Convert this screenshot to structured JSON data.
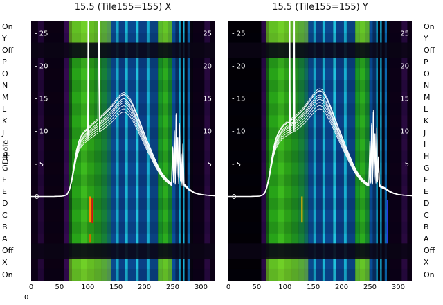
{
  "figure": {
    "title_x": "15.5 (Tile155=155) X",
    "title_y": "15.5 (Tile155=155) Y",
    "dipole_axis_label": "Dipole",
    "corner_zero": "0"
  },
  "row_labels": [
    "On",
    "Y",
    "Off",
    "P",
    "O",
    "N",
    "M",
    "L",
    "K",
    "J",
    "I",
    "H",
    "G",
    "F",
    "E",
    "D",
    "C",
    "B",
    "A",
    "Off",
    "X",
    "On"
  ],
  "ytick_rows": [
    {
      "v": 25,
      "left": "- 25",
      "right": "25"
    },
    {
      "v": 20,
      "left": "- 20",
      "right": "20"
    },
    {
      "v": 15,
      "left": "- 15",
      "right": "15"
    },
    {
      "v": 10,
      "left": "- 10",
      "right": "10"
    },
    {
      "v": 5,
      "left": "- 5",
      "right": "5"
    },
    {
      "v": 0,
      "left": "0",
      "right": ""
    }
  ],
  "xtick_labels": [
    "0",
    "50",
    "100",
    "150",
    "200",
    "250",
    "300"
  ],
  "xtick_values": [
    0,
    50,
    100,
    150,
    200,
    250,
    300
  ],
  "chart_data": [
    {
      "type": "heatmap+line",
      "title": "15.5 (Tile155=155) X",
      "xlabel": "",
      "ylabel": "Dipole",
      "xlim": [
        0,
        324
      ],
      "ylim": [
        -12.9,
        26.9
      ],
      "yticks": [
        0,
        5,
        10,
        15,
        20,
        25
      ],
      "n_rows": 22,
      "line_color": "#ffffff",
      "off_color": "#0a0414",
      "bright_color": "rgba(225,255,60,0.32)",
      "off_row_indices": [
        2,
        19
      ],
      "bright_row_indices": [
        0,
        1,
        20,
        21
      ],
      "bright_spans": [
        [
          66,
          141
        ],
        [
          224,
          249
        ]
      ],
      "stripes": [
        [
          0,
          12,
          "#0d0016"
        ],
        [
          12,
          22,
          "#230737"
        ],
        [
          22,
          58,
          "#0b0012"
        ],
        [
          58,
          66,
          "#33094e"
        ],
        [
          66,
          72,
          "#135a12"
        ],
        [
          72,
          88,
          "#27a318"
        ],
        [
          88,
          100,
          "#3cba1e"
        ],
        [
          100,
          112,
          "#2aa018"
        ],
        [
          112,
          124,
          "#1e8e20"
        ],
        [
          124,
          134,
          "#178038"
        ],
        [
          134,
          141,
          "#0f6a5e"
        ],
        [
          141,
          150,
          "#0a4a8e"
        ],
        [
          150,
          155,
          "#17a8ca"
        ],
        [
          155,
          166,
          "#0a3f86"
        ],
        [
          166,
          171,
          "#1bb6d6"
        ],
        [
          171,
          185,
          "#0a4890"
        ],
        [
          185,
          190,
          "#21c2de"
        ],
        [
          190,
          204,
          "#0a3f86"
        ],
        [
          204,
          209,
          "#17aed2"
        ],
        [
          209,
          224,
          "#0a4280"
        ],
        [
          224,
          232,
          "#199826"
        ],
        [
          232,
          242,
          "#2bac1e"
        ],
        [
          242,
          249,
          "#16842a"
        ],
        [
          249,
          255,
          "#0a4e98"
        ],
        [
          255,
          261,
          "#083064"
        ],
        [
          261,
          264,
          "#0fa6ce"
        ],
        [
          264,
          268,
          "#060512"
        ],
        [
          268,
          271,
          "#1ab2da"
        ],
        [
          271,
          276,
          "#060616"
        ],
        [
          276,
          280,
          "#0a68ae"
        ],
        [
          280,
          286,
          "#070410"
        ],
        [
          286,
          306,
          "#0c0016"
        ],
        [
          306,
          316,
          "#28093e"
        ],
        [
          316,
          324,
          "#0c0014"
        ]
      ],
      "spectrum": {
        "x": [
          0,
          40,
          55,
          60,
          64,
          68,
          72,
          76,
          80,
          84,
          88,
          92,
          96,
          100,
          100.8,
          101.6,
          106,
          110,
          114,
          118,
          118.6,
          119.8,
          120.6,
          126,
          132,
          138,
          144,
          150,
          156,
          160,
          164,
          168,
          172,
          176,
          180,
          184,
          188,
          192,
          196,
          200,
          205,
          210,
          215,
          220,
          225,
          230,
          235,
          240,
          245,
          248,
          250,
          251.5,
          253,
          254.5,
          256,
          257.5,
          259,
          260.5,
          262,
          263.5,
          265,
          266.5,
          268,
          270,
          274,
          278,
          283,
          288,
          295,
          305,
          315,
          324
        ],
        "y": [
          0,
          0,
          0.05,
          0.15,
          0.4,
          1.2,
          2.8,
          5,
          7,
          8.3,
          9.1,
          9.6,
          10,
          10.3,
          35,
          10.4,
          10.8,
          11.1,
          11.4,
          11.7,
          35,
          35,
          11.9,
          12.3,
          12.8,
          13.3,
          13.9,
          14.6,
          15.2,
          15.5,
          15.6,
          15.4,
          15,
          14.5,
          13.8,
          13,
          12.2,
          11.3,
          10.4,
          9.5,
          8.4,
          7.4,
          6.4,
          5.4,
          4.5,
          3.7,
          3.1,
          2.6,
          2.2,
          2,
          7.5,
          2.5,
          10,
          2.2,
          12.5,
          3.5,
          9,
          2.3,
          11,
          2.8,
          6.5,
          2,
          8,
          1.9,
          1.6,
          1.2,
          0.9,
          0.6,
          0.4,
          0.25,
          0.15,
          0.1
        ]
      },
      "trace_multipliers": [
        1,
        0.96,
        0.92,
        0.89,
        0.86,
        1.02,
        0.83,
        0.94
      ],
      "markers": [
        {
          "x": 104,
          "y1": 0,
          "y2": -3.9,
          "color": "#ff8a00"
        },
        {
          "x": 108,
          "y1": -0.3,
          "y2": -4.1,
          "color": "#e01010"
        },
        {
          "x": 104,
          "y1": -5.8,
          "y2": -7.0,
          "color": "#c96a00"
        }
      ]
    },
    {
      "type": "heatmap+line",
      "title": "15.5 (Tile155=155) Y",
      "xlabel": "",
      "ylabel": "Dipole",
      "xlim": [
        0,
        324
      ],
      "ylim": [
        -12.9,
        26.9
      ],
      "yticks": [
        0,
        5,
        10,
        15,
        20,
        25
      ],
      "n_rows": 22,
      "line_color": "#ffffff",
      "off_color": "#0a0414",
      "bright_color": "rgba(225,255,60,0.32)",
      "off_row_indices": [
        2,
        19
      ],
      "bright_row_indices": [
        0,
        1,
        20,
        21
      ],
      "bright_spans": [
        [
          66,
          141
        ],
        [
          224,
          249
        ]
      ],
      "stripes": [
        [
          0,
          58,
          "#020005"
        ],
        [
          58,
          66,
          "#2a0846"
        ],
        [
          66,
          72,
          "#135a12"
        ],
        [
          72,
          88,
          "#27a318"
        ],
        [
          88,
          100,
          "#3cba1e"
        ],
        [
          100,
          112,
          "#2aa018"
        ],
        [
          112,
          124,
          "#1e8e20"
        ],
        [
          124,
          134,
          "#178038"
        ],
        [
          134,
          141,
          "#0f6a5e"
        ],
        [
          141,
          150,
          "#0a4a8e"
        ],
        [
          150,
          155,
          "#17a8ca"
        ],
        [
          155,
          166,
          "#0a3f86"
        ],
        [
          166,
          171,
          "#1bb6d6"
        ],
        [
          171,
          185,
          "#0a4890"
        ],
        [
          185,
          190,
          "#21c2de"
        ],
        [
          190,
          204,
          "#0a3f86"
        ],
        [
          204,
          209,
          "#17aed2"
        ],
        [
          209,
          224,
          "#0a4280"
        ],
        [
          224,
          232,
          "#199826"
        ],
        [
          232,
          242,
          "#2bac1e"
        ],
        [
          242,
          249,
          "#16842a"
        ],
        [
          249,
          255,
          "#0a4e98"
        ],
        [
          255,
          261,
          "#083064"
        ],
        [
          261,
          264,
          "#0fa6ce"
        ],
        [
          264,
          268,
          "#060512"
        ],
        [
          268,
          271,
          "#1ab2da"
        ],
        [
          271,
          276,
          "#060616"
        ],
        [
          276,
          280,
          "#0a68ae"
        ],
        [
          280,
          286,
          "#070410"
        ],
        [
          286,
          306,
          "#0c0016"
        ],
        [
          306,
          316,
          "#28093e"
        ],
        [
          316,
          324,
          "#0c0014"
        ]
      ],
      "spectrum": {
        "x": [
          0,
          40,
          55,
          60,
          64,
          68,
          72,
          76,
          80,
          84,
          88,
          92,
          96,
          100,
          104,
          107.5,
          108.3,
          109.1,
          112,
          115.5,
          116.3,
          117.1,
          122,
          128,
          134,
          140,
          146,
          152,
          158,
          162,
          166,
          170,
          174,
          178,
          182,
          186,
          190,
          195,
          200,
          205,
          210,
          215,
          220,
          225,
          230,
          235,
          240,
          245,
          248,
          250,
          251.5,
          253,
          254.5,
          256,
          257.5,
          259,
          260.5,
          262,
          263.5,
          265,
          267,
          270,
          275,
          280,
          285,
          292,
          300,
          312,
          324
        ],
        "y": [
          0,
          0,
          0.05,
          0.2,
          0.5,
          1.5,
          3.2,
          5.5,
          7.5,
          8.8,
          9.6,
          10.2,
          10.7,
          11,
          11.3,
          11.4,
          35,
          11.5,
          11.8,
          11.9,
          35,
          12,
          12.4,
          12.9,
          13.5,
          14.2,
          14.9,
          15.6,
          16.1,
          16.2,
          16,
          15.5,
          14.9,
          14.1,
          13.2,
          12.3,
          11.4,
          10.3,
          9.2,
          8.1,
          7,
          6,
          5,
          4.1,
          3.4,
          2.8,
          2.4,
          2,
          1.9,
          8.5,
          2.4,
          11,
          2.2,
          13,
          3,
          9.5,
          2.4,
          10.5,
          2.6,
          6,
          1.8,
          1.6,
          1.4,
          1.1,
          0.8,
          0.5,
          0.3,
          0.18,
          0.1
        ]
      },
      "trace_multipliers": [
        1,
        0.96,
        0.92,
        0.89,
        0.86,
        1.02,
        0.83,
        0.94
      ],
      "markers": [
        {
          "x": 130,
          "y1": 0,
          "y2": -3.9,
          "color": "#ffb400"
        },
        {
          "x": 281,
          "y1": -0.5,
          "y2": -7.2,
          "color": "#2b3bdf"
        }
      ]
    }
  ]
}
